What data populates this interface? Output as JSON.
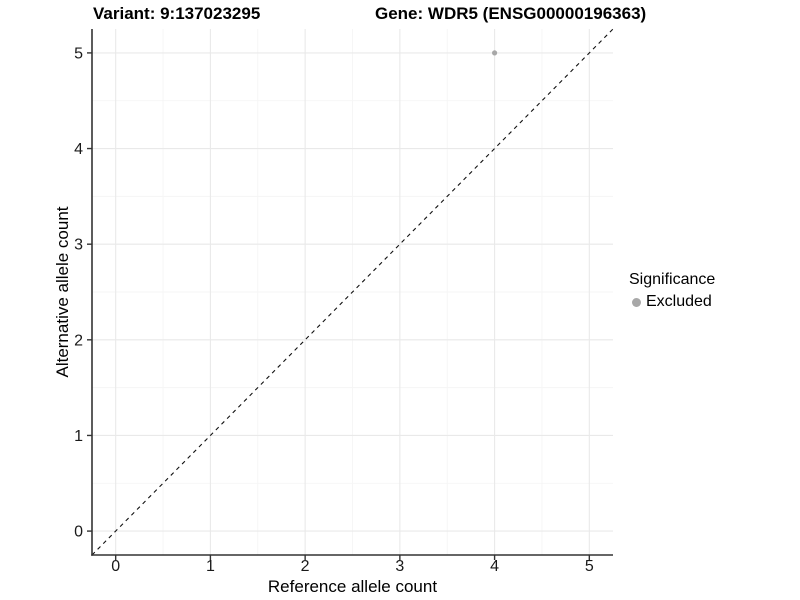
{
  "figure": {
    "title_left": "Variant: 9:137023295",
    "title_right": "Gene: WDR5 (ENSG00000196363)"
  },
  "legend": {
    "title": "Significance",
    "items": [
      {
        "label": "Excluded",
        "color": "#a8a8a8",
        "marker": "circle"
      }
    ]
  },
  "chart_data": {
    "type": "scatter",
    "title": "Variant: 9:137023295   Gene: WDR5 (ENSG00000196363)",
    "xlabel": "Reference allele count",
    "ylabel": "Alternative allele count",
    "xlim": [
      -0.25,
      5.25
    ],
    "ylim": [
      -0.25,
      5.25
    ],
    "xticks": [
      0,
      1,
      2,
      3,
      4,
      5
    ],
    "yticks": [
      0,
      1,
      2,
      3,
      4,
      5
    ],
    "minor_xticks": [
      0.5,
      1.5,
      2.5,
      3.5,
      4.5
    ],
    "minor_yticks": [
      0.5,
      1.5,
      2.5,
      3.5,
      4.5
    ],
    "grid": true,
    "legend_position": "right",
    "series": [
      {
        "name": "Excluded",
        "color": "#a8a8a8",
        "points": [
          {
            "x": 4,
            "y": 5
          }
        ]
      }
    ],
    "reference_line": {
      "kind": "identity",
      "x1": -0.25,
      "y1": -0.25,
      "x2": 5.25,
      "y2": 5.25,
      "style": "dashed",
      "color": "#111111"
    }
  },
  "colors": {
    "background": "#ffffff",
    "grid_major": "#e9e9e9",
    "grid_minor": "#f5f5f5",
    "axis_line": "#333333",
    "tick": "#333333",
    "tick_label": "#1a1a1a"
  }
}
